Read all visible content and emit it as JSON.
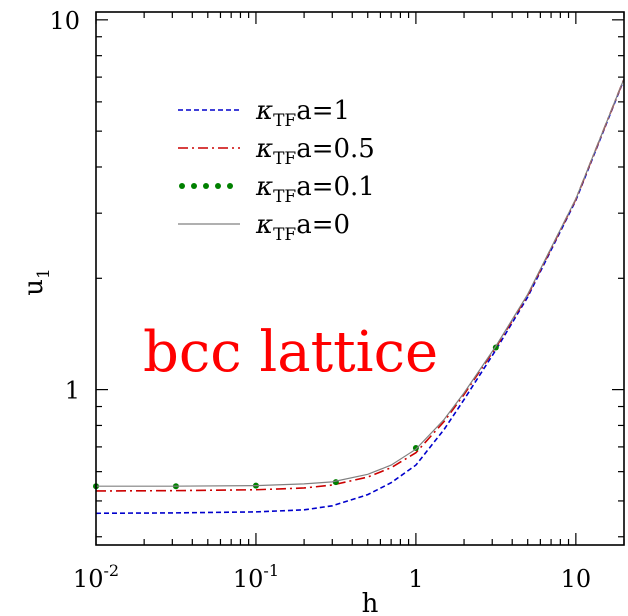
{
  "chart_data": {
    "type": "line",
    "xlabel": "h",
    "ylabel": "u",
    "ylabel_sub": "1",
    "xscale": "log",
    "yscale": "log",
    "xlim": [
      0.01,
      20
    ],
    "ylim": [
      0.38,
      10.5
    ],
    "x_ticks": [
      {
        "value": 0.01,
        "base": "10",
        "exp": "-2"
      },
      {
        "value": 0.1,
        "base": "10",
        "exp": "-1"
      },
      {
        "value": 1,
        "base": "1",
        "exp": ""
      },
      {
        "value": 10,
        "base": "10",
        "exp": ""
      }
    ],
    "y_ticks": [
      {
        "value": 1,
        "label": "1"
      },
      {
        "value": 10,
        "label": "10"
      }
    ],
    "grid": false,
    "legend_position": "upper-left",
    "annotation": {
      "text": "bcc lattice",
      "color": "#ff0000"
    },
    "series": [
      {
        "name_prefix": "κ",
        "name_sub": "TF",
        "name_suffix": "a=1",
        "color": "#0000cc",
        "style": "dashed",
        "x": [
          0.01,
          0.03,
          0.1,
          0.2,
          0.3,
          0.5,
          0.7,
          1.0,
          1.5,
          2.0,
          3.16,
          5.0,
          10.0,
          20.0
        ],
        "y": [
          0.463,
          0.464,
          0.467,
          0.473,
          0.485,
          0.52,
          0.56,
          0.625,
          0.78,
          0.94,
          1.28,
          1.78,
          3.25,
          6.9
        ]
      },
      {
        "name_prefix": "κ",
        "name_sub": "TF",
        "name_suffix": "a=0.5",
        "color": "#cc0000",
        "style": "dashdot",
        "x": [
          0.01,
          0.03,
          0.1,
          0.2,
          0.3,
          0.5,
          0.7,
          1.0,
          1.5,
          2.0,
          3.16,
          5.0,
          10.0,
          20.0
        ],
        "y": [
          0.532,
          0.533,
          0.536,
          0.542,
          0.552,
          0.58,
          0.615,
          0.675,
          0.82,
          0.97,
          1.3,
          1.8,
          3.27,
          6.92
        ]
      },
      {
        "name_prefix": "κ",
        "name_sub": "TF",
        "name_suffix": "a=0.1",
        "color": "#008000",
        "style": "dotted",
        "x": [
          0.01,
          0.0316,
          0.1,
          0.316,
          1.0,
          3.16
        ],
        "y": [
          0.548,
          0.548,
          0.55,
          0.562,
          0.695,
          1.3
        ]
      },
      {
        "name_prefix": "κ",
        "name_sub": "TF",
        "name_suffix": "a=0",
        "color": "#808080",
        "style": "solid",
        "x": [
          0.01,
          0.03,
          0.1,
          0.2,
          0.3,
          0.5,
          0.7,
          1.0,
          1.5,
          2.0,
          3.16,
          5.0,
          10.0,
          20.0
        ],
        "y": [
          0.548,
          0.548,
          0.55,
          0.556,
          0.563,
          0.59,
          0.625,
          0.69,
          0.83,
          0.98,
          1.31,
          1.81,
          3.28,
          6.93
        ]
      }
    ]
  }
}
